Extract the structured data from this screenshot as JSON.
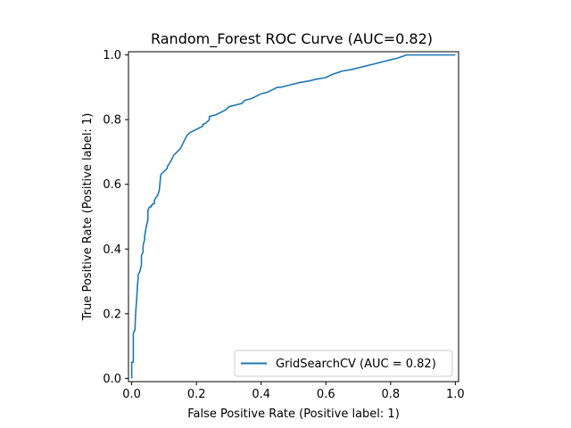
{
  "chart_data": {
    "type": "line",
    "title": "Random_Forest ROC Curve (AUC=0.82)",
    "xlabel": "False Positive Rate (Positive label: 1)",
    "ylabel": "True Positive Rate (Positive label: 1)",
    "xlim": [
      -0.01,
      1.01
    ],
    "ylim": [
      -0.01,
      1.01
    ],
    "xticks": [
      0.0,
      0.2,
      0.4,
      0.6,
      0.8,
      1.0
    ],
    "yticks": [
      0.0,
      0.2,
      0.4,
      0.6,
      0.8,
      1.0
    ],
    "xtick_labels": [
      "0.0",
      "0.2",
      "0.4",
      "0.6",
      "0.8",
      "1.0"
    ],
    "ytick_labels": [
      "0.0",
      "0.2",
      "0.4",
      "0.6",
      "0.8",
      "1.0"
    ],
    "grid": false,
    "legend_position": "lower-right",
    "series": [
      {
        "name": "GridSearchCV (AUC = 0.82)",
        "color": "#1f77b4",
        "x": [
          0.0,
          0.0,
          0.005,
          0.005,
          0.01,
          0.012,
          0.015,
          0.018,
          0.02,
          0.02,
          0.025,
          0.03,
          0.03,
          0.035,
          0.035,
          0.04,
          0.04,
          0.045,
          0.05,
          0.05,
          0.055,
          0.06,
          0.06,
          0.063,
          0.065,
          0.07,
          0.07,
          0.075,
          0.08,
          0.085,
          0.09,
          0.095,
          0.1,
          0.105,
          0.11,
          0.11,
          0.12,
          0.13,
          0.14,
          0.15,
          0.16,
          0.17,
          0.18,
          0.19,
          0.2,
          0.21,
          0.22,
          0.22,
          0.23,
          0.24,
          0.24,
          0.26,
          0.27,
          0.28,
          0.29,
          0.3,
          0.32,
          0.34,
          0.35,
          0.37,
          0.38,
          0.39,
          0.4,
          0.42,
          0.42,
          0.44,
          0.45,
          0.46,
          0.48,
          0.5,
          0.52,
          0.55,
          0.57,
          0.6,
          0.62,
          0.65,
          0.68,
          0.7,
          0.72,
          0.74,
          0.76,
          0.78,
          0.8,
          0.82,
          0.85,
          0.87,
          0.88,
          0.9,
          0.92,
          0.93,
          0.95,
          1.0
        ],
        "y": [
          0.0,
          0.05,
          0.05,
          0.14,
          0.15,
          0.2,
          0.24,
          0.29,
          0.31,
          0.32,
          0.33,
          0.35,
          0.38,
          0.39,
          0.41,
          0.43,
          0.44,
          0.47,
          0.49,
          0.52,
          0.53,
          0.53,
          0.535,
          0.535,
          0.54,
          0.54,
          0.55,
          0.56,
          0.565,
          0.58,
          0.63,
          0.635,
          0.64,
          0.645,
          0.65,
          0.655,
          0.67,
          0.69,
          0.7,
          0.71,
          0.73,
          0.75,
          0.76,
          0.765,
          0.77,
          0.775,
          0.78,
          0.785,
          0.79,
          0.8,
          0.81,
          0.815,
          0.82,
          0.825,
          0.83,
          0.84,
          0.845,
          0.85,
          0.86,
          0.865,
          0.87,
          0.875,
          0.88,
          0.885,
          0.885,
          0.895,
          0.9,
          0.9,
          0.905,
          0.91,
          0.915,
          0.92,
          0.925,
          0.93,
          0.94,
          0.95,
          0.955,
          0.96,
          0.965,
          0.97,
          0.975,
          0.98,
          0.985,
          0.99,
          1.0,
          1.0,
          1.0,
          1.0,
          1.0,
          1.0,
          1.0,
          1.0
        ]
      }
    ]
  }
}
